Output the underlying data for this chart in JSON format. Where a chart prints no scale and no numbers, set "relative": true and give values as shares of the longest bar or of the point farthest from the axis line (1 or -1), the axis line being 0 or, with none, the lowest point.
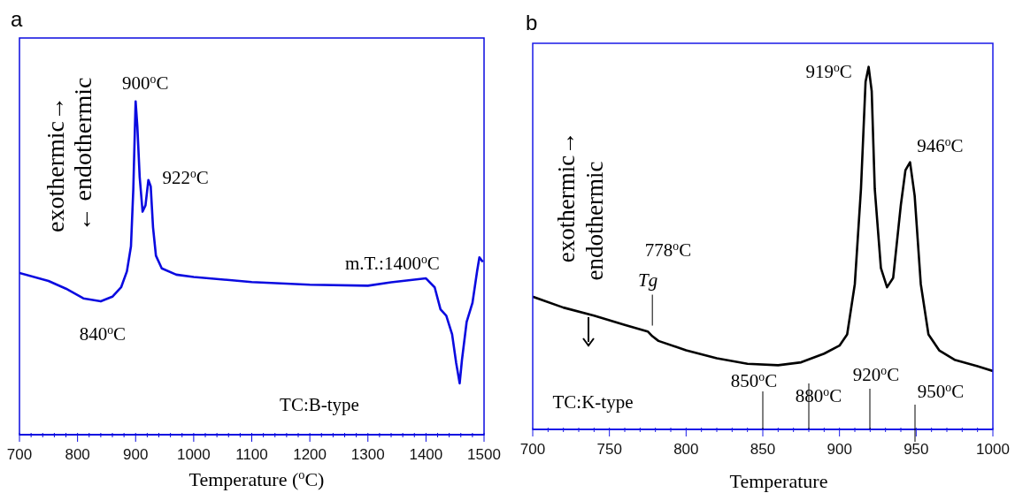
{
  "chart_data": [
    {
      "type": "line",
      "title": "a",
      "xlabel": "Temperature ($^{o}$C)",
      "ylabel": "exothermic→\n← endothermic",
      "relative": true,
      "xlim": [
        700,
        1500
      ],
      "xticks": [
        700,
        {
          "value": 720,
          "label": null
        },
        {
          "value": 740,
          "label": null
        },
        {
          "value": 760,
          "label": null
        },
        {
          "value": 780,
          "label": null
        },
        800,
        {
          "value": 820,
          "label": null
        },
        {
          "value": 840,
          "label": null
        },
        {
          "value": 860,
          "label": null
        },
        {
          "value": 880,
          "label": null
        },
        900,
        {
          "value": 920,
          "label": null
        },
        {
          "value": 940,
          "label": null
        },
        {
          "value": 960,
          "label": null
        },
        {
          "value": 980,
          "label": null
        },
        1000,
        {
          "value": 1020,
          "label": null
        },
        {
          "value": 1040,
          "label": null
        },
        {
          "value": 1060,
          "label": null
        },
        {
          "value": 1080,
          "label": null
        },
        1100,
        {
          "value": 1120,
          "label": null
        },
        {
          "value": 1140,
          "label": null
        },
        {
          "value": 1160,
          "label": null
        },
        {
          "value": 1180,
          "label": null
        },
        1200,
        {
          "value": 1220,
          "label": null
        },
        {
          "value": 1240,
          "label": null
        },
        {
          "value": 1260,
          "label": null
        },
        {
          "value": 1280,
          "label": null
        },
        1300,
        {
          "value": 1320,
          "label": null
        },
        {
          "value": 1340,
          "label": null
        },
        {
          "value": 1360,
          "label": null
        },
        {
          "value": 1380,
          "label": null
        },
        1400,
        {
          "value": 1420,
          "label": null
        },
        {
          "value": 1440,
          "label": null
        },
        {
          "value": 1460,
          "label": null
        },
        {
          "value": 1480,
          "label": null
        },
        1500
      ],
      "series": [
        {
          "color": "#0a0ae0",
          "x": [
            700,
            750,
            780,
            810,
            840,
            860,
            875,
            885,
            892,
            896,
            900,
            903,
            907,
            912,
            917,
            922,
            926,
            930,
            935,
            945,
            970,
            1000,
            1100,
            1200,
            1300,
            1340,
            1400,
            1415,
            1425,
            1435,
            1445,
            1452,
            1458,
            1462,
            1470,
            1480,
            1488,
            1492,
            1498
          ],
          "values": [
            0.485,
            0.461,
            0.438,
            0.409,
            0.4,
            0.414,
            0.442,
            0.49,
            0.565,
            0.735,
            1,
            0.924,
            0.773,
            0.669,
            0.688,
            0.764,
            0.745,
            0.622,
            0.537,
            0.499,
            0.48,
            0.473,
            0.458,
            0.45,
            0.447,
            0.457,
            0.469,
            0.442,
            0.376,
            0.357,
            0.301,
            0.215,
            0.154,
            0.225,
            0.338,
            0.395,
            0.49,
            0.532,
            0.518
          ]
        }
      ],
      "annotations": [
        {
          "text": "900$^{o}$C",
          "x": 900,
          "y": 1
        },
        {
          "text": "922$^{o}$C",
          "x": 922,
          "y": 0.764
        },
        {
          "text": "840$^{o}$C",
          "x": 840,
          "y": 0.4
        },
        {
          "text": "m.T.:1400$^{o}$C",
          "x": 1400,
          "y": 0.469
        },
        "TC:B-type"
      ]
    },
    {
      "type": "line",
      "title": "b",
      "xlabel": "Temperature",
      "ylabel": "exothermic→\nendothermic",
      "relative": true,
      "xlim": [
        700,
        1000
      ],
      "xticks": [
        700,
        {
          "value": 710,
          "label": null
        },
        {
          "value": 720,
          "label": null
        },
        {
          "value": 730,
          "label": null
        },
        {
          "value": 740,
          "label": null
        },
        750,
        {
          "value": 760,
          "label": null
        },
        {
          "value": 770,
          "label": null
        },
        {
          "value": 780,
          "label": null
        },
        {
          "value": 790,
          "label": null
        },
        800,
        {
          "value": 810,
          "label": null
        },
        {
          "value": 820,
          "label": null
        },
        {
          "value": 830,
          "label": null
        },
        {
          "value": 840,
          "label": null
        },
        850,
        {
          "value": 860,
          "label": null
        },
        {
          "value": 870,
          "label": null
        },
        {
          "value": 880,
          "label": null
        },
        {
          "value": 890,
          "label": null
        },
        900,
        {
          "value": 910,
          "label": null
        },
        {
          "value": 920,
          "label": null
        },
        {
          "value": 930,
          "label": null
        },
        {
          "value": 940,
          "label": null
        },
        950,
        {
          "value": 960,
          "label": null
        },
        {
          "value": 970,
          "label": null
        },
        {
          "value": 980,
          "label": null
        },
        {
          "value": 990,
          "label": null
        },
        1000
      ],
      "series": [
        {
          "color": "#000000",
          "x": [
            700,
            720,
            740,
            760,
            775,
            778,
            782,
            800,
            820,
            840,
            860,
            875,
            890,
            900,
            905,
            910,
            914,
            917,
            919,
            921,
            923,
            927,
            931,
            935,
            940,
            943,
            946,
            949,
            953,
            958,
            965,
            975,
            990,
            1000
          ],
          "values": [
            0.366,
            0.336,
            0.314,
            0.288,
            0.27,
            0.257,
            0.244,
            0.218,
            0.196,
            0.181,
            0.177,
            0.185,
            0.209,
            0.231,
            0.262,
            0.401,
            0.663,
            0.959,
            1,
            0.933,
            0.663,
            0.445,
            0.392,
            0.418,
            0.619,
            0.715,
            0.737,
            0.645,
            0.401,
            0.262,
            0.218,
            0.192,
            0.174,
            0.161
          ]
        }
      ],
      "annotations": [
        {
          "text": "919$^{o}$C",
          "x": 919,
          "y": 1
        },
        {
          "text": "946$^{o}$C",
          "x": 946,
          "y": 0.737
        },
        "778$^{o}$C",
        {
          "text": "Tg",
          "x": 778,
          "y": 0.257
        },
        "850$^{o}$C",
        "880$^{o}$C",
        "920$^{o}$C",
        "950$^{o}$C",
        "TC:K-type"
      ]
    }
  ]
}
